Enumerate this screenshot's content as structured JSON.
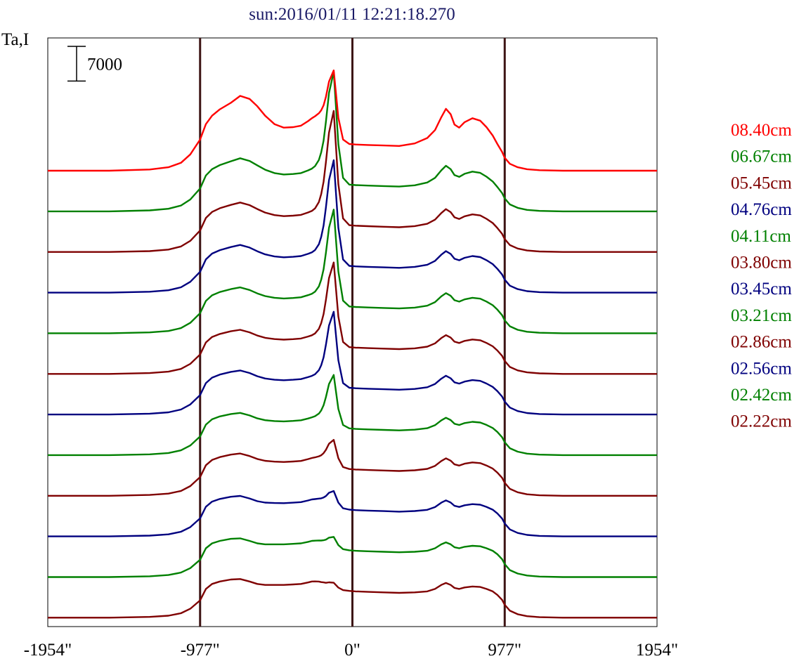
{
  "chart_data": {
    "type": "line",
    "title": "sun:2016/01/11 12:21:18.270",
    "ylabel": "Ta,I",
    "scale_bar_label": "7000",
    "scale_bar_value": 7000,
    "xlim": [
      -1954,
      1954
    ],
    "x_ticks": [
      {
        "value": -1954,
        "label": "-1954\""
      },
      {
        "value": -977,
        "label": "-977\""
      },
      {
        "value": 0,
        "label": "0\""
      },
      {
        "value": 977,
        "label": "977\""
      },
      {
        "value": 1954,
        "label": "1954\""
      }
    ],
    "vertical_lines": [
      -977,
      0,
      977
    ],
    "vertical_line_color": "#3d1414",
    "offset_step": 8200,
    "ylim": [
      -1800,
      117000
    ],
    "profile_shape": {
      "x": [
        -1954,
        -1560,
        -1300,
        -1180,
        -1100,
        -1040,
        -977,
        -940,
        -900,
        -850,
        -780,
        -720,
        -660,
        -610,
        -560,
        -500,
        -440,
        -380,
        -330,
        -285,
        -260,
        -240,
        -215,
        -200,
        -185,
        -170,
        -150,
        -120,
        -90,
        -60,
        -20,
        20,
        100,
        200,
        300,
        400,
        480,
        530,
        570,
        600,
        630,
        655,
        685,
        720,
        770,
        820,
        860,
        900,
        930,
        960,
        977,
        1010,
        1060,
        1120,
        1200,
        1350,
        1600,
        1954
      ],
      "base": [
        0,
        0,
        150,
        400,
        900,
        1800,
        3500,
        5800,
        6800,
        7300,
        7700,
        7800,
        7300,
        6800,
        6600,
        6600,
        6600,
        6700,
        6800,
        7100,
        7300,
        7300,
        7200,
        7000,
        6800,
        6500,
        6300,
        6000,
        5700,
        5500,
        5400,
        5300,
        5200,
        5100,
        5000,
        5100,
        5300,
        5800,
        6600,
        7000,
        6600,
        6000,
        5800,
        6100,
        6300,
        6200,
        5800,
        5300,
        4600,
        3600,
        2600,
        1400,
        700,
        300,
        100,
        0,
        0,
        0
      ],
      "limb": [
        0,
        0,
        100,
        300,
        700,
        1500,
        2800,
        3600,
        4300,
        5100,
        6000,
        7300,
        7200,
        6200,
        4500,
        2800,
        2100,
        2100,
        2300,
        2900,
        3300,
        3400,
        3200,
        2800,
        2200,
        1400,
        700,
        250,
        0,
        0,
        0,
        0,
        0,
        0,
        0,
        400,
        1300,
        2400,
        4200,
        5500,
        4800,
        3300,
        2900,
        3700,
        4300,
        3900,
        3000,
        1800,
        800,
        200,
        0,
        0,
        0,
        0,
        0,
        0,
        0,
        0
      ],
      "peak": [
        0,
        0,
        0,
        0,
        0,
        0,
        0,
        0,
        0,
        0,
        0,
        0,
        0,
        0,
        0,
        0,
        0,
        0,
        0,
        0,
        0,
        150,
        600,
        1200,
        2100,
        3500,
        5500,
        7000,
        2500,
        400,
        0,
        0,
        0,
        0,
        0,
        0,
        0,
        0,
        0,
        0,
        0,
        0,
        0,
        0,
        0,
        0,
        0,
        0,
        0,
        0,
        0,
        0,
        0,
        0,
        0,
        0,
        0,
        0
      ]
    },
    "series": [
      {
        "name": "02.22cm",
        "color": "#7f0000",
        "base_scale": 1.0,
        "limb_scale": 0.0,
        "peak_scale": 0.15
      },
      {
        "name": "02.42cm",
        "color": "#008000",
        "base_scale": 1.0,
        "limb_scale": 0.0,
        "peak_scale": 0.3
      },
      {
        "name": "02.56cm",
        "color": "#00007f",
        "base_scale": 1.0,
        "limb_scale": 0.05,
        "peak_scale": 0.45
      },
      {
        "name": "02.86cm",
        "color": "#7f0000",
        "base_scale": 1.0,
        "limb_scale": 0.1,
        "peak_scale": 0.75
      },
      {
        "name": "03.21cm",
        "color": "#008000",
        "base_scale": 1.0,
        "limb_scale": 0.1,
        "peak_scale": 1.45
      },
      {
        "name": "03.45cm",
        "color": "#00007f",
        "base_scale": 1.0,
        "limb_scale": 0.15,
        "peak_scale": 2.1
      },
      {
        "name": "03.80cm",
        "color": "#7f0000",
        "base_scale": 1.0,
        "limb_scale": 0.15,
        "peak_scale": 2.35
      },
      {
        "name": "04.11cm",
        "color": "#008000",
        "base_scale": 1.0,
        "limb_scale": 0.2,
        "peak_scale": 2.7
      },
      {
        "name": "04.76cm",
        "color": "#00007f",
        "base_scale": 1.0,
        "limb_scale": 0.25,
        "peak_scale": 2.95
      },
      {
        "name": "05.45cm",
        "color": "#7f0000",
        "base_scale": 1.0,
        "limb_scale": 0.3,
        "peak_scale": 3.2
      },
      {
        "name": "06.67cm",
        "color": "#008000",
        "base_scale": 1.0,
        "limb_scale": 0.4,
        "peak_scale": 3.15
      },
      {
        "name": "08.40cm",
        "color": "#ff0000",
        "base_scale": 1.0,
        "limb_scale": 1.0,
        "peak_scale": 2.0
      }
    ],
    "legend_placement": "right",
    "legend_order": [
      "08.40cm",
      "06.67cm",
      "05.45cm",
      "04.76cm",
      "04.11cm",
      "03.80cm",
      "03.45cm",
      "03.21cm",
      "02.86cm",
      "02.56cm",
      "02.42cm",
      "02.22cm"
    ],
    "colors": {
      "title": "#1a1a66",
      "axis": "#000000",
      "frame": "#000000"
    }
  }
}
